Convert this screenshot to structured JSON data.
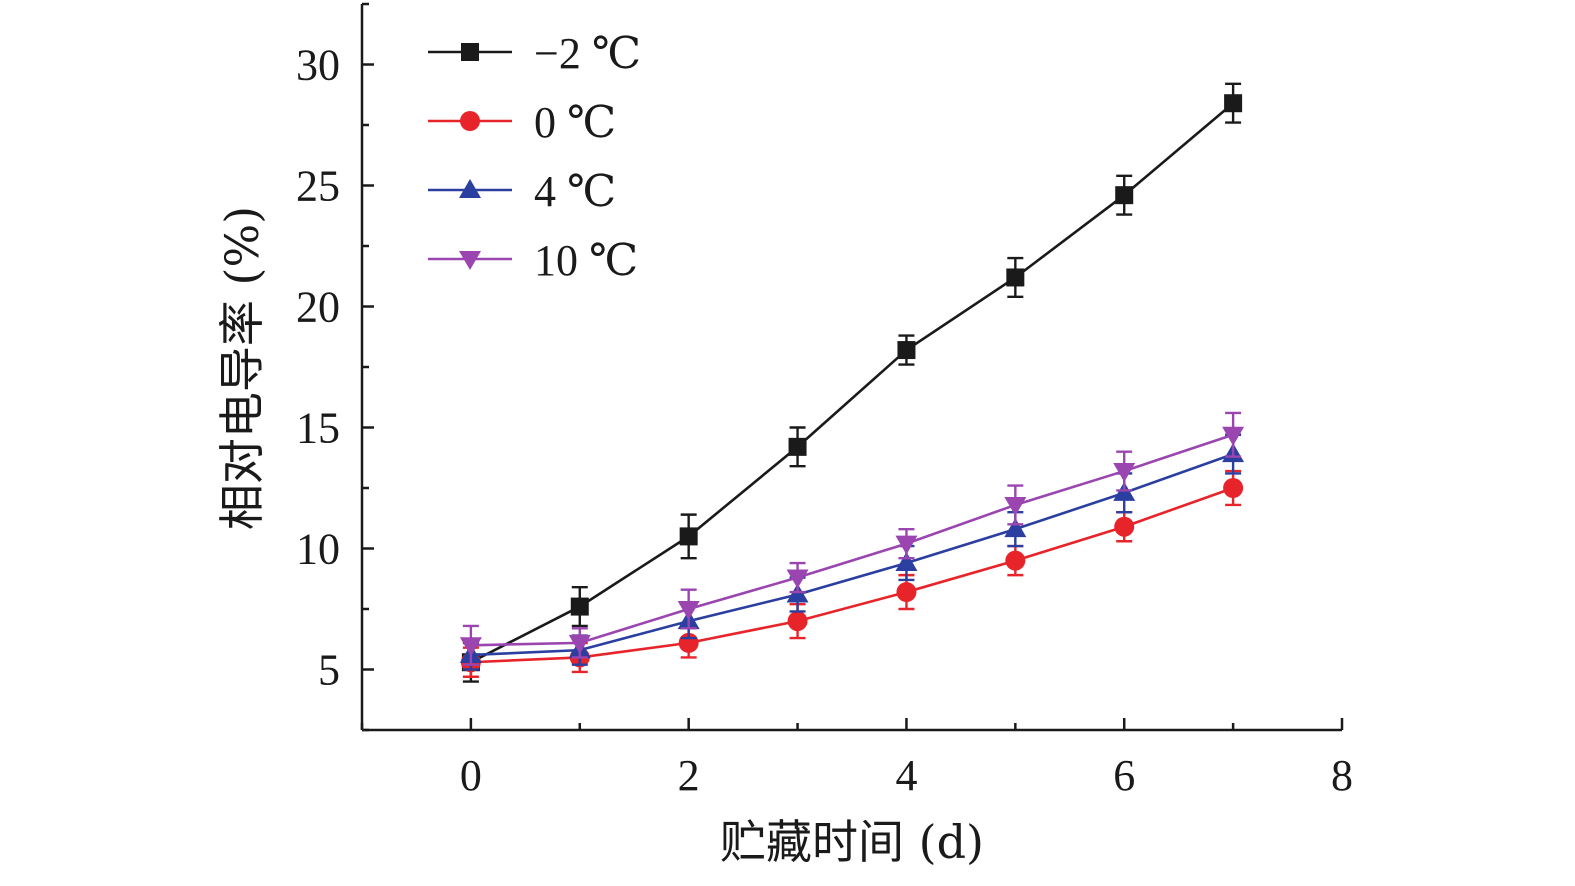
{
  "chart_data": {
    "type": "line",
    "xlabel": "贮藏时间 (d)",
    "ylabel": "相对电导率 (%)",
    "xlim": [
      -1,
      8
    ],
    "ylim": [
      2.5,
      32.5
    ],
    "x_ticks": [
      0,
      2,
      4,
      6,
      8
    ],
    "y_ticks": [
      5,
      10,
      15,
      20,
      25,
      30
    ],
    "grid": false,
    "legend_position": "top-left",
    "x": [
      0,
      1,
      2,
      3,
      4,
      5,
      6,
      7
    ],
    "series": [
      {
        "name": "−2 ℃",
        "color": "#1a1a1a",
        "marker": "square",
        "values": [
          5.3,
          7.6,
          10.5,
          14.2,
          18.2,
          21.2,
          24.6,
          28.4
        ],
        "errors": [
          0.8,
          0.8,
          0.9,
          0.8,
          0.6,
          0.8,
          0.8,
          0.8
        ]
      },
      {
        "name": "0 ℃",
        "color": "#e8242b",
        "marker": "circle",
        "values": [
          5.3,
          5.5,
          6.1,
          7.0,
          8.2,
          9.5,
          10.9,
          12.5
        ],
        "errors": [
          0.6,
          0.6,
          0.6,
          0.7,
          0.7,
          0.6,
          0.6,
          0.7
        ]
      },
      {
        "name": "4 ℃",
        "color": "#2b3fa0",
        "marker": "triangle-up",
        "values": [
          5.6,
          5.8,
          7.0,
          8.1,
          9.4,
          10.8,
          12.3,
          13.9
        ],
        "errors": [
          0.6,
          0.6,
          0.7,
          0.7,
          0.7,
          0.7,
          0.8,
          0.8
        ]
      },
      {
        "name": "10 ℃",
        "color": "#9b45b0",
        "marker": "triangle-down",
        "values": [
          6.0,
          6.1,
          7.5,
          8.8,
          10.2,
          11.8,
          13.2,
          14.7
        ],
        "errors": [
          0.8,
          0.6,
          0.8,
          0.6,
          0.6,
          0.8,
          0.8,
          0.9
        ]
      }
    ]
  }
}
